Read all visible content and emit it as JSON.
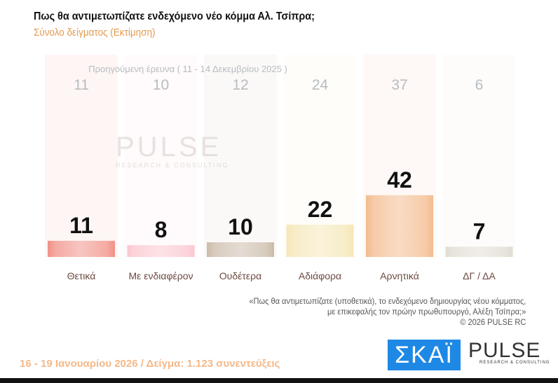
{
  "header": {
    "title": "Πως θα αντιμετωπίζατε ενδεχόμενο νέο κόμμα Αλ. Τσίπρα;",
    "subtitle": "Σύνολο δείγματος  (Εκτίμηση)"
  },
  "chart_data": {
    "type": "bar",
    "title": "Πως θα αντιμετωπίζατε ενδεχόμενο νέο κόμμα Αλ. Τσίπρα;",
    "categories": [
      "Θετικά",
      "Με ενδιαφέρον",
      "Ουδέτερα",
      "Αδιάφορα",
      "Αρνητικά",
      "ΔΓ / ΔΑ"
    ],
    "series": [
      {
        "name": "Προηγούμενη έρευνα ( 11 - 14 Δεκεμβρίου 2025 )",
        "values": [
          11,
          10,
          12,
          24,
          37,
          6
        ]
      },
      {
        "values": [
          11,
          8,
          10,
          22,
          42,
          7
        ]
      }
    ],
    "colors": [
      "#f08a80",
      "#fbc4cc",
      "#c8b8a4",
      "#f5e6b4",
      "#f2b888",
      "#e0dbd0"
    ],
    "ylim": [
      0,
      100
    ],
    "grid": false
  },
  "watermark": {
    "name": "PULSE",
    "tagline": "RESEARCH & CONSULTING"
  },
  "quote": [
    "«Πως θα αντιμετωπίζατε (υποθετικά), το ενδεχόμενο δημιουργίας νέου κόμματος,",
    "με επικεφαλής τον πρώην πρωθυπουργό, Αλέξη Τσίπρα;»",
    "©  2026  PULSE RC"
  ],
  "footer": "16 - 19 Ιανουαρίου 2026  /  Δείγμα:  1.123 συνεντεύξεις",
  "logos": {
    "skai": "ΣΚΑΪ",
    "pulse": "PULSE",
    "pulse_tagline": "RESEARCH & CONSULTING"
  }
}
